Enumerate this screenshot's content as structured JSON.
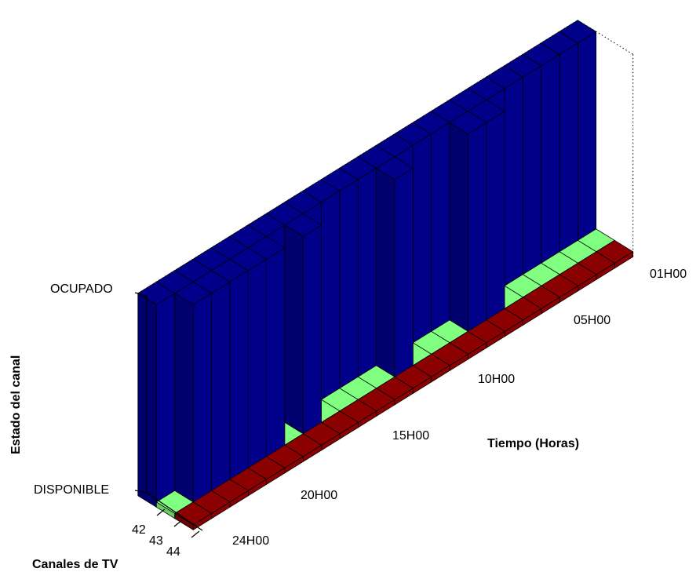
{
  "chart_data": {
    "type": "bar3d",
    "title": "",
    "xlabel": "Tiempo (Horas)",
    "ylabel": "Canales de TV",
    "zlabel": "Estado del canal",
    "time_ticks": [
      "01H00",
      "05H00",
      "10H00",
      "15H00",
      "20H00",
      "24H00"
    ],
    "channel_ticks": [
      "42",
      "43",
      "44"
    ],
    "state_ticks": [
      "OCUPADO",
      "DISPONIBLE"
    ],
    "colors": {
      "ocupado": "#00008b",
      "disponible": "#80ff80",
      "floor": "#8b0000"
    },
    "hours": [
      1,
      2,
      3,
      4,
      5,
      6,
      7,
      8,
      9,
      10,
      11,
      12,
      13,
      14,
      15,
      16,
      17,
      18,
      19,
      20,
      21,
      22,
      23,
      24
    ],
    "series": [
      {
        "channel": "42",
        "state": [
          1,
          1,
          1,
          1,
          1,
          1,
          1,
          1,
          1,
          1,
          1,
          1,
          1,
          1,
          1,
          1,
          1,
          1,
          1,
          1,
          1,
          1,
          1,
          1
        ]
      },
      {
        "channel": "43",
        "state": [
          0,
          0,
          0,
          0,
          0,
          0,
          1,
          1,
          0,
          0,
          0,
          1,
          0,
          0,
          0,
          0,
          1,
          0,
          1,
          1,
          1,
          1,
          1,
          0
        ]
      },
      {
        "channel": "44",
        "state": [
          0,
          0,
          0,
          0,
          0,
          0,
          0,
          0,
          0,
          0,
          0,
          0,
          0,
          0,
          0,
          0,
          0,
          0,
          0,
          0,
          0,
          0,
          0,
          0
        ]
      }
    ]
  }
}
